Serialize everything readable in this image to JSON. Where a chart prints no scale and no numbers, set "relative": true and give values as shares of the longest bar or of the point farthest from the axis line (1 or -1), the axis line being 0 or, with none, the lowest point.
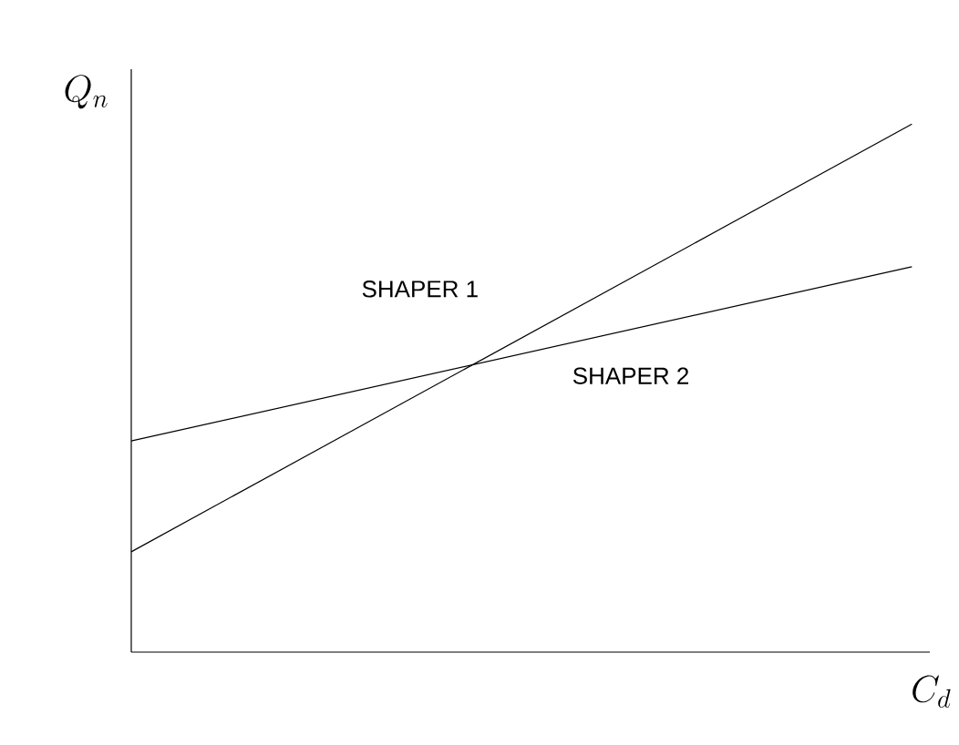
{
  "chart_data": {
    "type": "line",
    "relative": true,
    "xlabel": "C_d",
    "ylabel": "Q_n",
    "categories": [
      null,
      null
    ],
    "series": [
      {
        "name": "SHAPER 1",
        "color": "#000000",
        "values": [
          0.19,
          1
        ]
      },
      {
        "name": "SHAPER 2",
        "color": "#000000",
        "values": [
          0.4,
          0.73
        ]
      }
    ]
  }
}
